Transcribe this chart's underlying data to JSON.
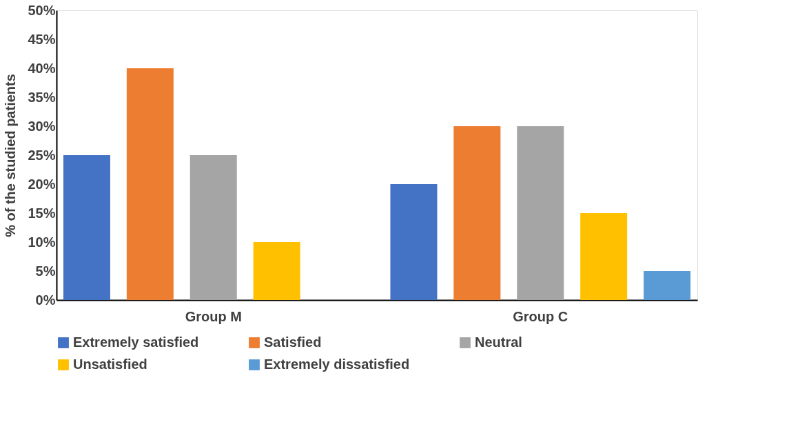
{
  "chart_data": {
    "type": "bar",
    "ylabel": "% of the studied patients",
    "categories": [
      "Group M",
      "Group C"
    ],
    "series": [
      {
        "name": "Extremely satisfied",
        "color": "#4472c4",
        "values": [
          25,
          20
        ]
      },
      {
        "name": "Satisfied",
        "color": "#ed7d31",
        "values": [
          40,
          30
        ]
      },
      {
        "name": "Neutral",
        "color": "#a5a5a5",
        "values": [
          25,
          30
        ]
      },
      {
        "name": "Unsatisfied",
        "color": "#ffc000",
        "values": [
          10,
          15
        ]
      },
      {
        "name": "Extremely dissatisfied",
        "color": "#5b9bd5",
        "values": [
          0,
          5
        ]
      }
    ],
    "ylim": [
      0,
      50
    ],
    "yticks": [
      {
        "value": 0,
        "label": "0%"
      },
      {
        "value": 5,
        "label": "5%"
      },
      {
        "value": 10,
        "label": "10%"
      },
      {
        "value": 15,
        "label": "15%"
      },
      {
        "value": 20,
        "label": "20%"
      },
      {
        "value": 25,
        "label": "25%"
      },
      {
        "value": 30,
        "label": "30%"
      },
      {
        "value": 35,
        "label": "35%"
      },
      {
        "value": 40,
        "label": "40%"
      },
      {
        "value": 45,
        "label": "45%"
      },
      {
        "value": 50,
        "label": "50%"
      }
    ],
    "grid": false,
    "legend": "bottom"
  }
}
